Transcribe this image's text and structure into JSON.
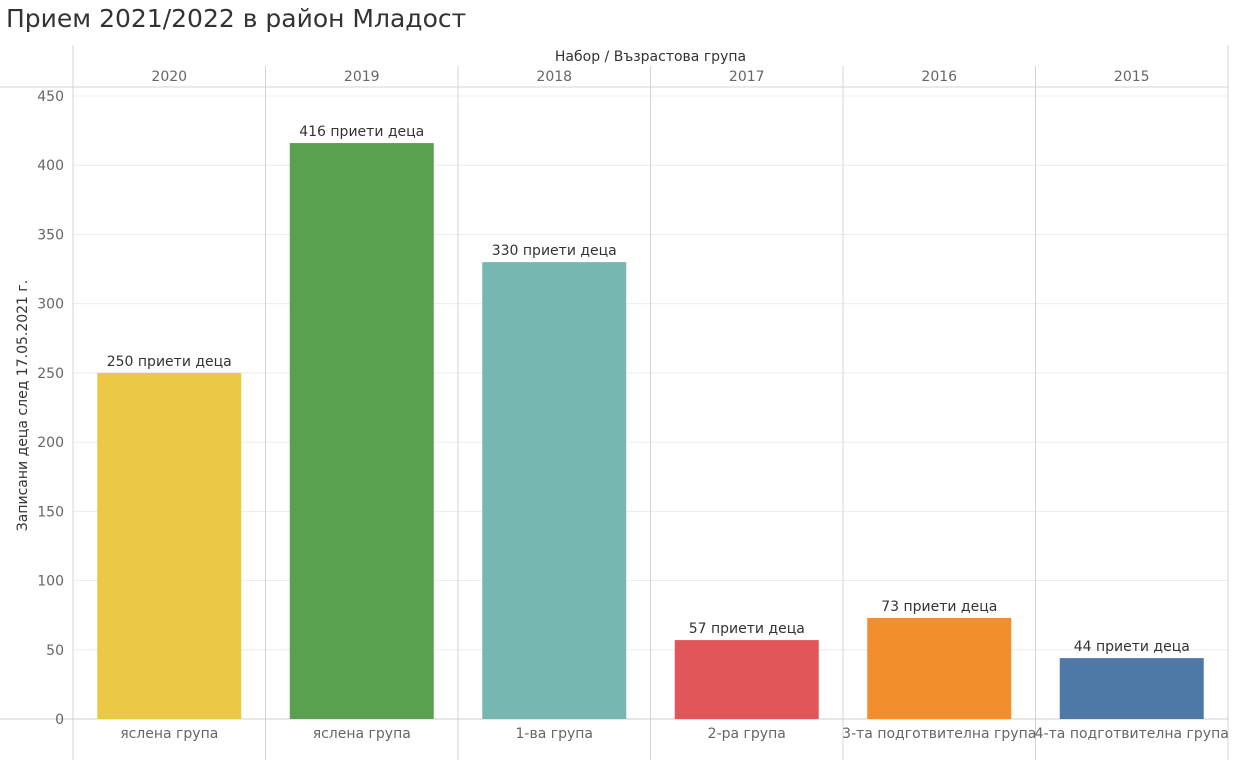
{
  "page_title": "Прием 2021/2022 в район Младост",
  "chart_data": {
    "type": "bar",
    "title": "Прием 2021/2022 в район Младост",
    "column_header_title": "Набор  /  Възрастова група",
    "columns": [
      "2020",
      "2019",
      "2018",
      "2017",
      "2016",
      "2015"
    ],
    "categories": [
      "ясленa група",
      "ясленa група",
      "1-ва група",
      "2-ра група",
      "3-та подготвителна група",
      "4-та подготвителна група"
    ],
    "values": [
      250,
      416,
      330,
      57,
      73,
      44
    ],
    "data_labels": [
      "250 приети деца",
      "416 приети деца",
      "330 приети деца",
      "57 приети деца",
      "73 приети деца",
      "44 приети деца"
    ],
    "colors": [
      "#EBC845",
      "#59A14F",
      "#76B7B2",
      "#E15759",
      "#F28E2B",
      "#4E79A7"
    ],
    "ylabel": "Записани деца след 17.05.2021 г.",
    "y_ticks": [
      0,
      50,
      100,
      150,
      200,
      250,
      300,
      350,
      400,
      450
    ],
    "ylim": [
      0,
      450
    ],
    "grid": true
  }
}
